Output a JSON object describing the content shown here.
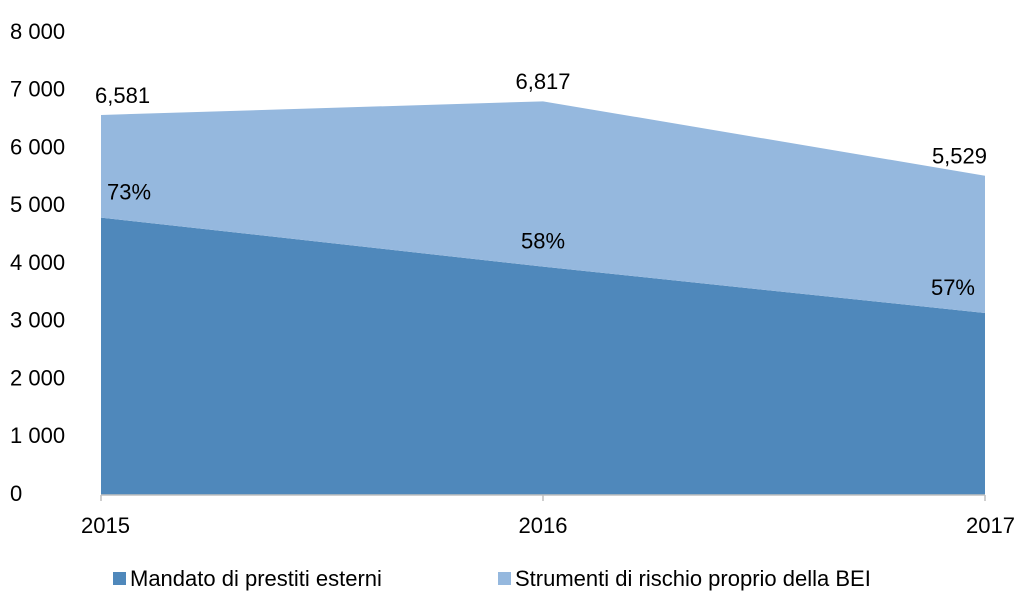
{
  "chart_data": {
    "type": "stacked_area",
    "categories": [
      "2015",
      "2016",
      "2017"
    ],
    "series": [
      {
        "name": "Mandato di prestiti esterni",
        "color": "#4f88bb",
        "values": [
          4804,
          3954,
          3152
        ]
      },
      {
        "name": "Strumenti di rischio proprio della BEI",
        "color": "#95b8de",
        "values": [
          1777,
          2863,
          2377
        ]
      }
    ],
    "total_labels": {
      "values": [
        6581,
        6817,
        5529
      ],
      "value_labels": [
        "6,581",
        "6,817",
        "5,529"
      ]
    },
    "share_labels": {
      "values": [
        73,
        58,
        57
      ],
      "value_labels": [
        "73%",
        "58%",
        "57%"
      ]
    },
    "ylim": [
      0,
      8000
    ],
    "yticks": [
      0,
      {
        "value": 1000,
        "label": "1 000"
      },
      {
        "value": 2000,
        "label": "2 000"
      },
      {
        "value": 3000,
        "label": "3 000"
      },
      {
        "value": 4000,
        "label": "4 000"
      },
      {
        "value": 5000,
        "label": "5 000"
      },
      {
        "value": 6000,
        "label": "6 000"
      },
      {
        "value": 7000,
        "label": "7 000"
      },
      {
        "value": 8000,
        "label": "8 000"
      }
    ],
    "grid": false,
    "legend": "bottom"
  }
}
